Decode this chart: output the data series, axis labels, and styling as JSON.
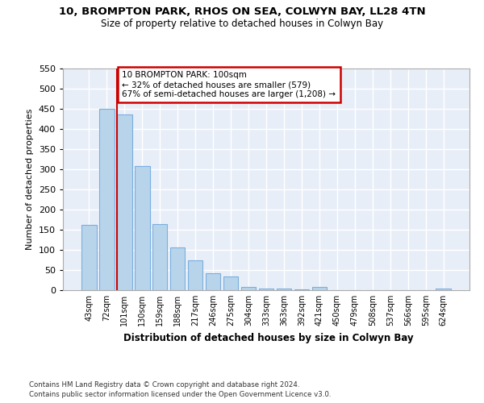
{
  "title_line1": "10, BROMPTON PARK, RHOS ON SEA, COLWYN BAY, LL28 4TN",
  "title_line2": "Size of property relative to detached houses in Colwyn Bay",
  "xlabel": "Distribution of detached houses by size in Colwyn Bay",
  "ylabel": "Number of detached properties",
  "categories": [
    "43sqm",
    "72sqm",
    "101sqm",
    "130sqm",
    "159sqm",
    "188sqm",
    "217sqm",
    "246sqm",
    "275sqm",
    "304sqm",
    "333sqm",
    "363sqm",
    "392sqm",
    "421sqm",
    "450sqm",
    "479sqm",
    "508sqm",
    "537sqm",
    "566sqm",
    "595sqm",
    "624sqm"
  ],
  "values": [
    163,
    450,
    435,
    307,
    165,
    107,
    75,
    43,
    34,
    9,
    5,
    5,
    2,
    8,
    1,
    0,
    1,
    0,
    0,
    0,
    5
  ],
  "bar_color": "#b8d4ea",
  "bar_edge_color": "#7aafe0",
  "vline_index": 2,
  "vline_color": "#cc0000",
  "annotation_text_line1": "10 BROMPTON PARK: 100sqm",
  "annotation_text_line2": "← 32% of detached houses are smaller (579)",
  "annotation_text_line3": "67% of semi-detached houses are larger (1,208) →",
  "annotation_box_facecolor": "#ffffff",
  "annotation_box_edgecolor": "#cc0000",
  "ylim_min": 0,
  "ylim_max": 550,
  "yticks": [
    0,
    50,
    100,
    150,
    200,
    250,
    300,
    350,
    400,
    450,
    500,
    550
  ],
  "plot_bgcolor": "#e8eef8",
  "fig_bgcolor": "#ffffff",
  "grid_color": "#ffffff",
  "footer_line1": "Contains HM Land Registry data © Crown copyright and database right 2024.",
  "footer_line2": "Contains public sector information licensed under the Open Government Licence v3.0."
}
